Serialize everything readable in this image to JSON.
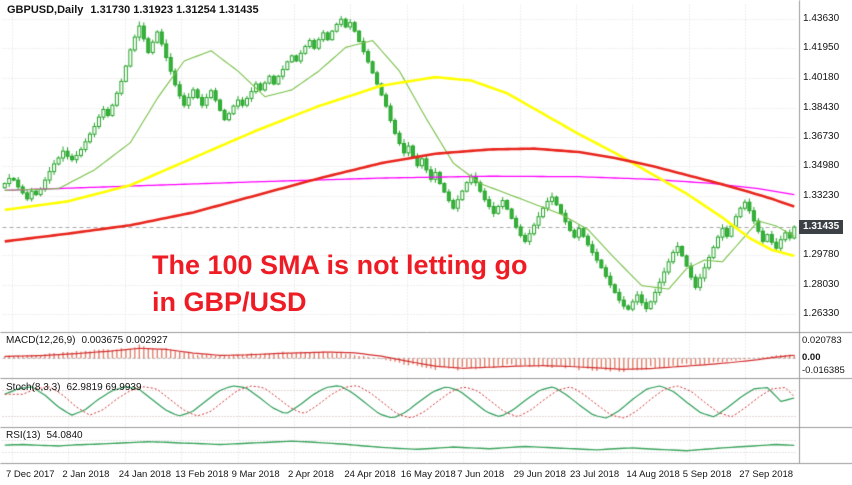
{
  "header": {
    "symbol": "GBPUSD,Daily",
    "ohlc": "1.31730 1.31923 1.31254 1.31435"
  },
  "annotation": {
    "line1": "The 100 SMA is not letting go",
    "line2": "in GBP/USD",
    "color": "#ee1c25"
  },
  "price_axis": {
    "ticks": [
      "1.43630",
      "1.41950",
      "1.40180",
      "1.38430",
      "1.36730",
      "1.34980",
      "1.33230",
      "1.29780",
      "1.28030",
      "1.26330"
    ],
    "tick_values": [
      1.4363,
      1.4195,
      1.4018,
      1.3843,
      1.3673,
      1.3498,
      1.3323,
      1.2978,
      1.2803,
      1.2633
    ],
    "current_label": "1.31435",
    "current_value": 1.31435,
    "range": {
      "min": 1.256,
      "max": 1.444
    }
  },
  "time_axis": {
    "labels": [
      "7 Dec 2017",
      "2 Jan 2018",
      "24 Jan 2018",
      "13 Feb 2018",
      "9 Mar 2018",
      "2 Apr 2018",
      "24 Apr 2018",
      "16 May 2018",
      "7 Jun 2018",
      "29 Jun 2018",
      "23 Jul 2018",
      "14 Aug 2018",
      "5 Sep 2018",
      "27 Sep 2018"
    ]
  },
  "panels": {
    "macd": {
      "label": "MACD(12,26,9)",
      "values": "0.003675 0.002927",
      "axis": {
        "max": "0.020783",
        "zero": "0.00",
        "min": "-0.016385"
      },
      "axis_values": {
        "max": 0.020783,
        "min": -0.016385
      }
    },
    "stoch": {
      "label": "Stoch(8,3,3)",
      "values": "62.9819 69.9939",
      "levels": [
        20,
        80
      ]
    },
    "rsi": {
      "label": "RSI(13)",
      "values": "54.0840",
      "levels": [
        30,
        70
      ]
    }
  },
  "colors": {
    "bull_body": "#ffffff",
    "bear_body": "#35b33a",
    "candle_border": "#28a42c",
    "sma50": "#ffff00",
    "sma100": "#e8251c",
    "sma200": "#ff00ff",
    "ma_fast": "#7ac04a",
    "macd_hist": "#e0826e",
    "macd_signal": "#d32f2f",
    "stoch_main": "#2f9e5a",
    "stoch_signal": "#cc3333",
    "rsi_line": "#3aa35c",
    "grid": "#dcdcdc",
    "separator": "#9a9a9a",
    "current_line": "#a8a8a8",
    "badge_bg": "#3c4146"
  },
  "chart_data": {
    "type": "candlestick",
    "symbol": "GBPUSD",
    "timeframe": "Daily",
    "title": "GBPUSD Daily with 50/100/200 SMA, MACD, Stochastic, RSI",
    "ylim": [
      1.256,
      1.444
    ],
    "closes": [
      1.34,
      1.343,
      1.342,
      1.338,
      1.3345,
      1.331,
      1.3355,
      1.3335,
      1.3365,
      1.342,
      1.347,
      1.3515,
      1.355,
      1.359,
      1.356,
      1.354,
      1.3565,
      1.36,
      1.3645,
      1.369,
      1.3735,
      1.379,
      1.3835,
      1.38,
      1.386,
      1.393,
      1.4,
      1.409,
      1.4185,
      1.426,
      1.4325,
      1.425,
      1.417,
      1.423,
      1.429,
      1.422,
      1.414,
      1.406,
      1.398,
      1.3915,
      1.386,
      1.3905,
      1.395,
      1.3905,
      1.386,
      1.3905,
      1.3945,
      1.389,
      1.383,
      1.3775,
      1.381,
      1.3855,
      1.389,
      1.386,
      1.39,
      1.394,
      1.3985,
      1.395,
      1.399,
      1.403,
      1.3985,
      1.403,
      1.407,
      1.4115,
      1.415,
      1.412,
      1.4165,
      1.4205,
      1.424,
      1.4195,
      1.4245,
      1.4285,
      1.4245,
      1.4295,
      1.4335,
      1.4365,
      1.432,
      1.4345,
      1.4295,
      1.4235,
      1.4175,
      1.4115,
      1.405,
      1.3985,
      1.392,
      1.3855,
      1.377,
      1.3695,
      1.3635,
      1.358,
      1.362,
      1.356,
      1.3505,
      1.3545,
      1.348,
      1.3425,
      1.3465,
      1.34,
      1.335,
      1.33,
      1.3255,
      1.3305,
      1.3355,
      1.3405,
      1.344,
      1.3405,
      1.3355,
      1.3305,
      1.3265,
      1.3225,
      1.3265,
      1.33,
      1.325,
      1.3195,
      1.3145,
      1.3095,
      1.306,
      1.3105,
      1.3155,
      1.3205,
      1.3255,
      1.3295,
      1.332,
      1.3275,
      1.3225,
      1.3175,
      1.3125,
      1.3085,
      1.3135,
      1.309,
      1.304,
      1.2995,
      1.295,
      1.2905,
      1.2855,
      1.2805,
      1.276,
      1.2715,
      1.268,
      1.2662,
      1.2705,
      1.2745,
      1.27,
      1.2665,
      1.2705,
      1.276,
      1.282,
      1.288,
      1.294,
      1.2995,
      1.303,
      1.2975,
      1.2915,
      1.285,
      1.279,
      1.2845,
      1.2905,
      1.2965,
      1.3025,
      1.3085,
      1.3135,
      1.309,
      1.315,
      1.3205,
      1.3255,
      1.329,
      1.324,
      1.318,
      1.312,
      1.306,
      1.31,
      1.3055,
      1.302,
      1.307,
      1.311,
      1.308,
      1.3144
    ],
    "moving_averages": {
      "sma50_anchors": [
        [
          0,
          1.3245
        ],
        [
          14,
          1.3295
        ],
        [
          28,
          1.339
        ],
        [
          42,
          1.355
        ],
        [
          56,
          1.371
        ],
        [
          70,
          1.3855
        ],
        [
          84,
          1.3975
        ],
        [
          96,
          1.4025
        ],
        [
          104,
          1.4005
        ],
        [
          112,
          1.393
        ],
        [
          120,
          1.381
        ],
        [
          128,
          1.369
        ],
        [
          136,
          1.358
        ],
        [
          144,
          1.346
        ],
        [
          152,
          1.334
        ],
        [
          160,
          1.32
        ],
        [
          166,
          1.308
        ],
        [
          171,
          1.301
        ],
        [
          176,
          1.2975
        ]
      ],
      "sma100_anchors": [
        [
          0,
          1.306
        ],
        [
          14,
          1.3105
        ],
        [
          28,
          1.3155
        ],
        [
          42,
          1.323
        ],
        [
          56,
          1.333
        ],
        [
          70,
          1.343
        ],
        [
          84,
          1.352
        ],
        [
          96,
          1.3575
        ],
        [
          108,
          1.36
        ],
        [
          118,
          1.3605
        ],
        [
          128,
          1.3585
        ],
        [
          136,
          1.355
        ],
        [
          144,
          1.3505
        ],
        [
          152,
          1.345
        ],
        [
          160,
          1.3395
        ],
        [
          166,
          1.335
        ],
        [
          171,
          1.331
        ],
        [
          176,
          1.3265
        ]
      ],
      "sma200_anchors": [
        [
          0,
          1.336
        ],
        [
          28,
          1.3385
        ],
        [
          56,
          1.341
        ],
        [
          84,
          1.3432
        ],
        [
          108,
          1.3443
        ],
        [
          128,
          1.344
        ],
        [
          144,
          1.3425
        ],
        [
          158,
          1.34
        ],
        [
          168,
          1.337
        ],
        [
          176,
          1.3335
        ]
      ],
      "ma20_anchors": [
        [
          0,
          1.336
        ],
        [
          12,
          1.337
        ],
        [
          20,
          1.348
        ],
        [
          28,
          1.364
        ],
        [
          34,
          1.39
        ],
        [
          40,
          1.412
        ],
        [
          46,
          1.418
        ],
        [
          52,
          1.406
        ],
        [
          58,
          1.391
        ],
        [
          64,
          1.395
        ],
        [
          70,
          1.406
        ],
        [
          76,
          1.42
        ],
        [
          82,
          1.424
        ],
        [
          88,
          1.406
        ],
        [
          94,
          1.378
        ],
        [
          100,
          1.352
        ],
        [
          106,
          1.34
        ],
        [
          112,
          1.334
        ],
        [
          118,
          1.328
        ],
        [
          124,
          1.322
        ],
        [
          130,
          1.313
        ],
        [
          136,
          1.296
        ],
        [
          142,
          1.28
        ],
        [
          148,
          1.278
        ],
        [
          152,
          1.29
        ],
        [
          156,
          1.295
        ],
        [
          160,
          1.294
        ],
        [
          164,
          1.306
        ],
        [
          168,
          1.318
        ],
        [
          172,
          1.315
        ],
        [
          176,
          1.309
        ]
      ]
    },
    "indicators": {
      "macd": {
        "signal_anchors": [
          [
            0,
            0.0018
          ],
          [
            8,
            0.0026
          ],
          [
            16,
            0.0045
          ],
          [
            24,
            0.007
          ],
          [
            30,
            0.0095
          ],
          [
            36,
            0.0085
          ],
          [
            42,
            0.005
          ],
          [
            48,
            0.0028
          ],
          [
            54,
            0.0032
          ],
          [
            60,
            0.0045
          ],
          [
            66,
            0.0052
          ],
          [
            72,
            0.006
          ],
          [
            78,
            0.0052
          ],
          [
            84,
            0.002
          ],
          [
            90,
            -0.003
          ],
          [
            96,
            -0.0075
          ],
          [
            102,
            -0.0095
          ],
          [
            108,
            -0.0085
          ],
          [
            114,
            -0.0075
          ],
          [
            120,
            -0.007
          ],
          [
            126,
            -0.0078
          ],
          [
            132,
            -0.0092
          ],
          [
            138,
            -0.0105
          ],
          [
            144,
            -0.0098
          ],
          [
            150,
            -0.008
          ],
          [
            156,
            -0.0062
          ],
          [
            162,
            -0.004
          ],
          [
            168,
            -0.0012
          ],
          [
            172,
            0.0012
          ],
          [
            176,
            0.0029
          ]
        ],
        "hist_anchors": [
          [
            0,
            0.0022
          ],
          [
            8,
            0.0035
          ],
          [
            16,
            0.006
          ],
          [
            24,
            0.009
          ],
          [
            30,
            0.011
          ],
          [
            36,
            0.008
          ],
          [
            42,
            0.004
          ],
          [
            48,
            0.0025
          ],
          [
            54,
            0.004
          ],
          [
            60,
            0.0055
          ],
          [
            66,
            0.006
          ],
          [
            72,
            0.0065
          ],
          [
            78,
            0.0035
          ],
          [
            84,
            -0.001
          ],
          [
            90,
            -0.006
          ],
          [
            96,
            -0.0095
          ],
          [
            102,
            -0.01
          ],
          [
            108,
            -0.008
          ],
          [
            114,
            -0.007
          ],
          [
            120,
            -0.0072
          ],
          [
            126,
            -0.009
          ],
          [
            132,
            -0.0108
          ],
          [
            138,
            -0.0115
          ],
          [
            144,
            -0.009
          ],
          [
            150,
            -0.0068
          ],
          [
            156,
            -0.005
          ],
          [
            162,
            -0.0025
          ],
          [
            168,
            0.0005
          ],
          [
            172,
            0.0025
          ],
          [
            176,
            0.0037
          ]
        ],
        "current_main": 0.003675,
        "current_signal": 0.002927
      },
      "stoch": {
        "main_samples": [
          72,
          85,
          90,
          70,
          42,
          22,
          35,
          60,
          80,
          90,
          85,
          60,
          35,
          20,
          30,
          55,
          80,
          92,
          88,
          65,
          40,
          25,
          45,
          70,
          88,
          93,
          75,
          50,
          25,
          15,
          30,
          55,
          78,
          90,
          80,
          55,
          30,
          18,
          35,
          60,
          82,
          90,
          70,
          45,
          22,
          15,
          35,
          62,
          85,
          92,
          78,
          52,
          28,
          18,
          40,
          65,
          85,
          88,
          55,
          63
        ],
        "current_main": 62.9819,
        "current_signal": 69.9939
      },
      "rsi": {
        "samples": [
          55,
          57,
          54,
          52,
          56,
          58,
          61,
          64,
          67,
          65,
          62,
          60,
          57,
          60,
          63,
          66,
          69,
          66,
          62,
          58,
          52,
          47,
          43,
          40,
          44,
          48,
          45,
          42,
          46,
          50,
          47,
          44,
          41,
          38,
          42,
          45,
          41,
          38,
          35,
          40,
          45,
          49,
          53,
          57,
          54
        ],
        "current": 54.084
      }
    }
  }
}
